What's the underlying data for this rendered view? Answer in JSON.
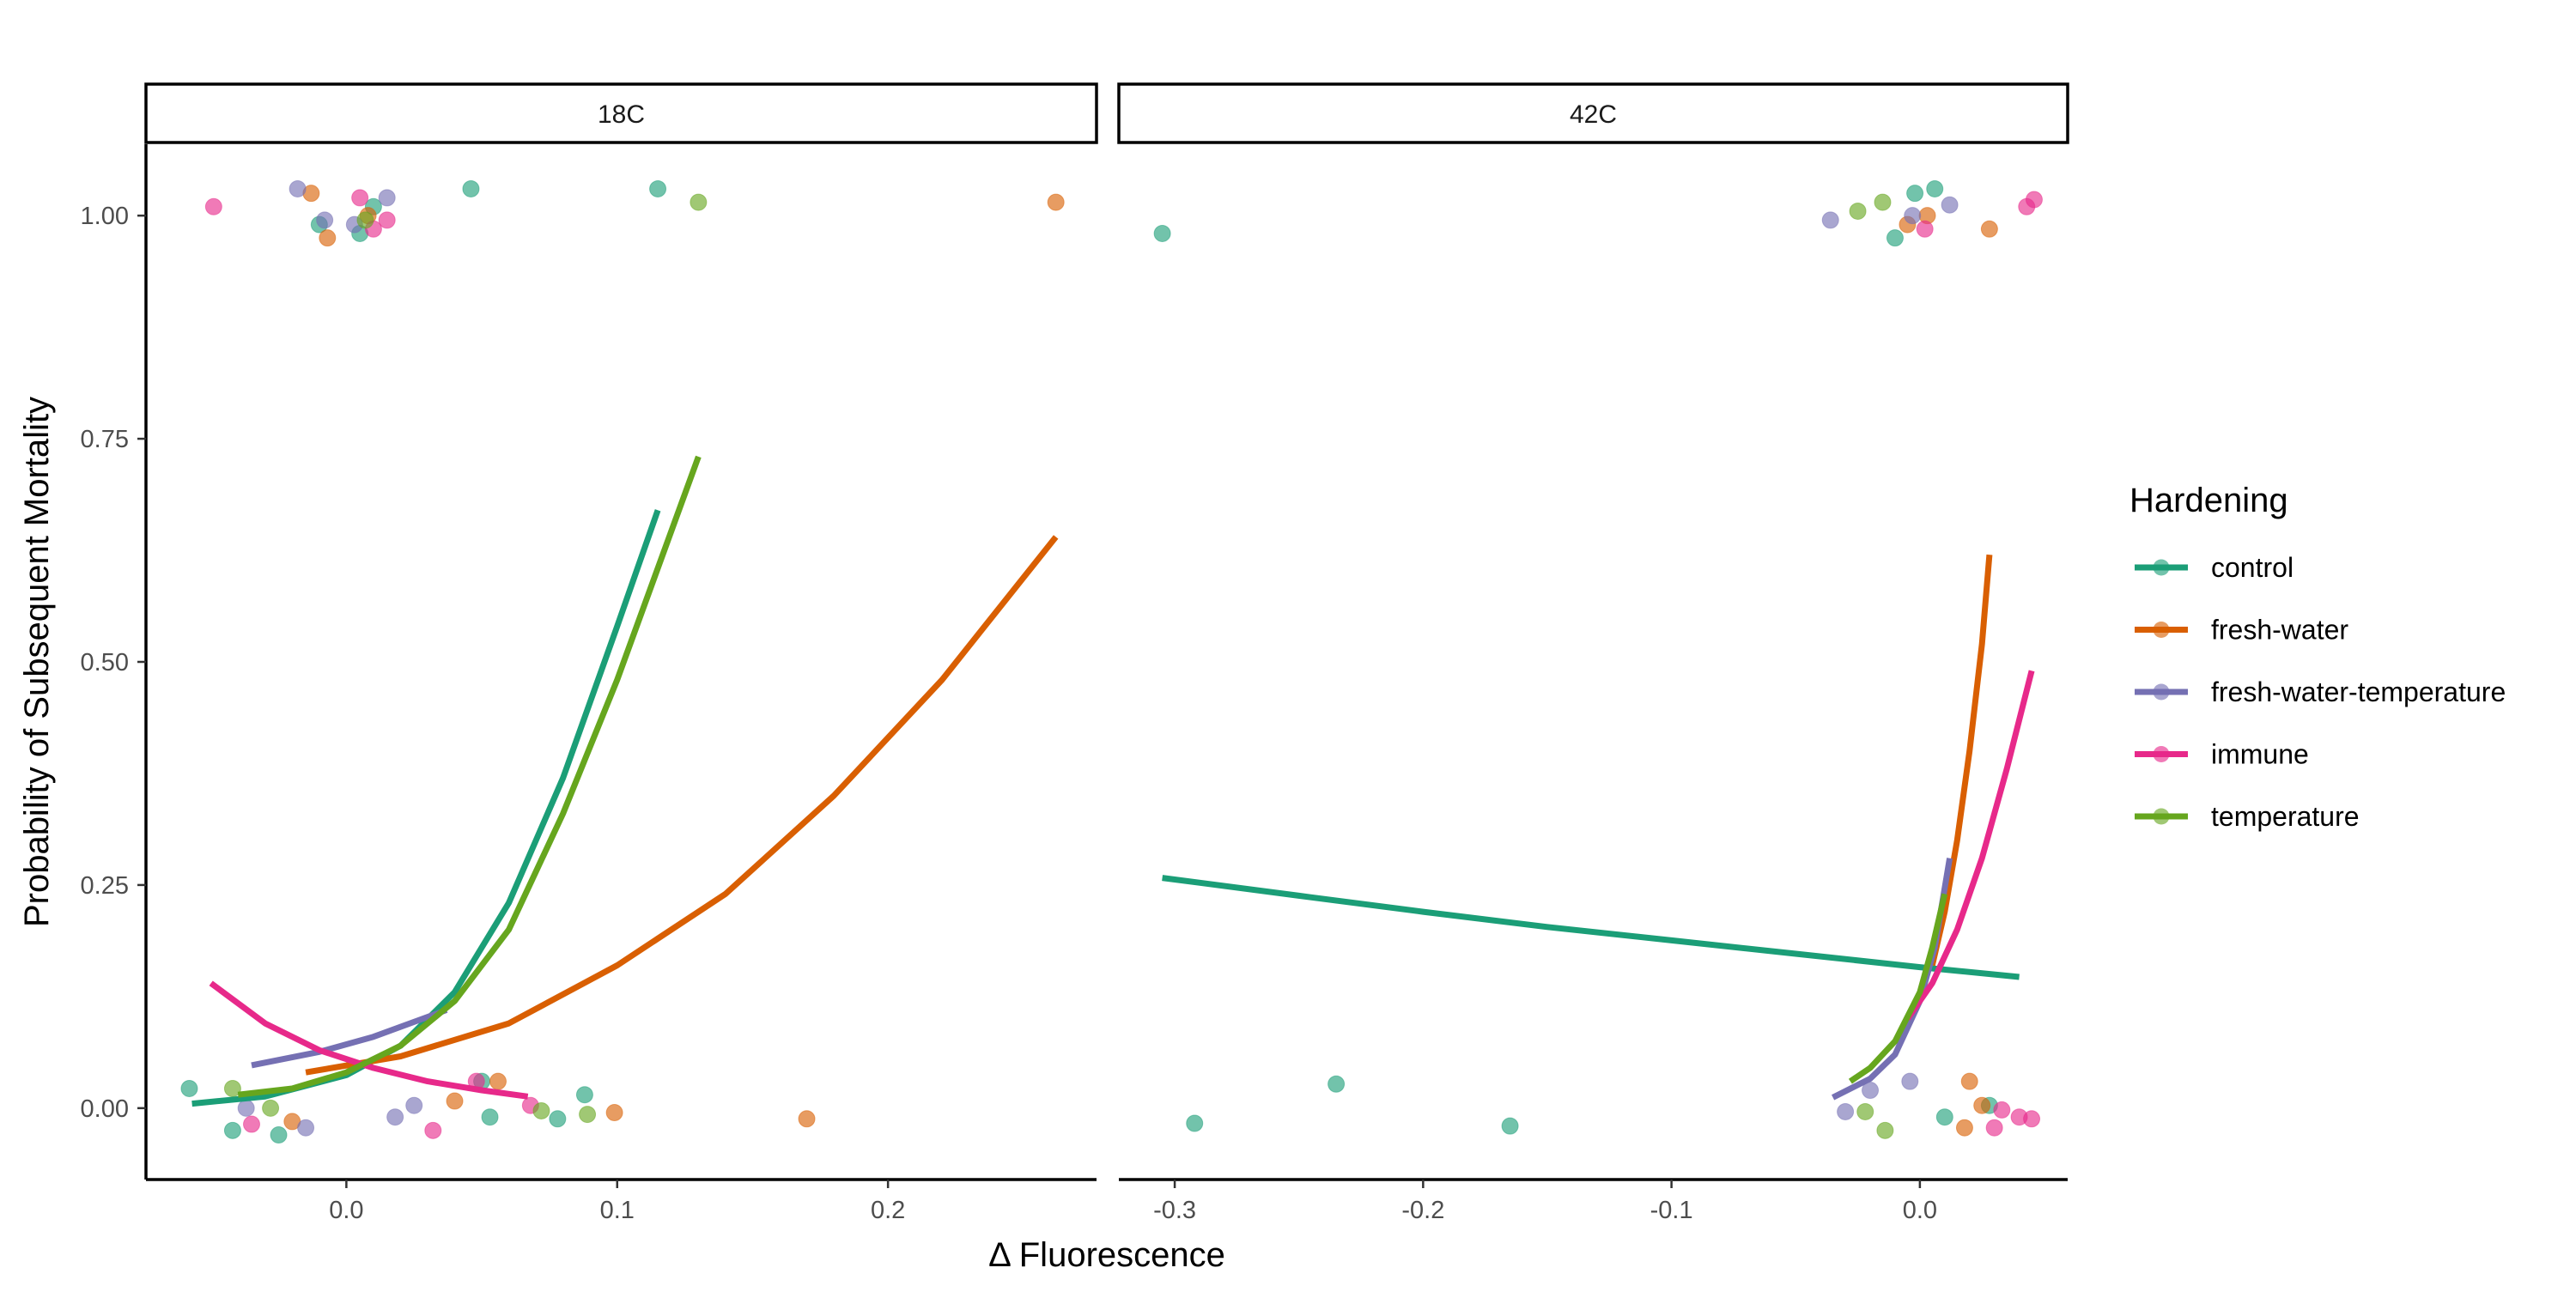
{
  "chart_data": {
    "type": "scatter",
    "xlabel": "Δ Fluorescence",
    "ylabel": "Probability of Subsequent Mortality",
    "legend": {
      "title": "Hardening",
      "placement": "right",
      "entries": [
        {
          "name": "control",
          "color": "#1B9E77"
        },
        {
          "name": "fresh-water",
          "color": "#D95F02"
        },
        {
          "name": "fresh-water-temperature",
          "color": "#7570B3"
        },
        {
          "name": "immune",
          "color": "#E7298A"
        },
        {
          "name": "temperature",
          "color": "#66A61E"
        }
      ]
    },
    "y_axis": {
      "range": [
        -0.08,
        1.08
      ],
      "ticks": [
        0,
        0.25,
        0.5,
        0.75,
        1
      ],
      "tick_labels": [
        "0.00",
        "0.25",
        "0.50",
        "0.75",
        "1.00"
      ]
    },
    "grid": false,
    "panels": [
      {
        "title": "18C",
        "x_range": [
          -0.074,
          0.277
        ],
        "x_ticks": [
          0,
          0.1,
          0.2
        ],
        "x_tick_labels": [
          "0.0",
          "0.1",
          "0.2"
        ],
        "curves": [
          {
            "name": "control",
            "x": [
              -0.057,
              -0.03,
              0,
              0.02,
              0.04,
              0.06,
              0.08,
              0.1,
              0.115
            ],
            "y": [
              0.005,
              0.013,
              0.037,
              0.07,
              0.13,
              0.23,
              0.37,
              0.54,
              0.67
            ]
          },
          {
            "name": "fresh-water",
            "x": [
              -0.015,
              0.02,
              0.06,
              0.1,
              0.14,
              0.18,
              0.22,
              0.262
            ],
            "y": [
              0.04,
              0.058,
              0.095,
              0.16,
              0.24,
              0.35,
              0.48,
              0.64
            ]
          },
          {
            "name": "fresh-water-temperature",
            "x": [
              -0.035,
              -0.01,
              0.01,
              0.037
            ],
            "y": [
              0.048,
              0.063,
              0.08,
              0.11
            ]
          },
          {
            "name": "immune",
            "x": [
              -0.05,
              -0.03,
              -0.01,
              0.01,
              0.03,
              0.05,
              0.067
            ],
            "y": [
              0.14,
              0.095,
              0.065,
              0.045,
              0.03,
              0.02,
              0.013
            ]
          },
          {
            "name": "temperature",
            "x": [
              -0.04,
              -0.02,
              0,
              0.02,
              0.04,
              0.06,
              0.08,
              0.1,
              0.13
            ],
            "y": [
              0.015,
              0.022,
              0.04,
              0.07,
              0.12,
              0.2,
              0.33,
              0.48,
              0.73
            ]
          }
        ],
        "points": [
          {
            "series": "control",
            "x": 0.046,
            "y": 1.03
          },
          {
            "series": "control",
            "x": 0.115,
            "y": 1.03
          },
          {
            "series": "control",
            "x": -0.01,
            "y": 0.99
          },
          {
            "series": "control",
            "x": 0.01,
            "y": 1.01
          },
          {
            "series": "control",
            "x": 0.005,
            "y": 0.98
          },
          {
            "series": "fresh-water",
            "x": 0.262,
            "y": 1.015
          },
          {
            "series": "fresh-water",
            "x": -0.013,
            "y": 1.025
          },
          {
            "series": "fresh-water",
            "x": -0.007,
            "y": 0.975
          },
          {
            "series": "fresh-water",
            "x": 0.008,
            "y": 1.0
          },
          {
            "series": "fresh-water-temperature",
            "x": -0.018,
            "y": 1.03
          },
          {
            "series": "fresh-water-temperature",
            "x": -0.008,
            "y": 0.995
          },
          {
            "series": "fresh-water-temperature",
            "x": 0.003,
            "y": 0.99
          },
          {
            "series": "fresh-water-temperature",
            "x": 0.015,
            "y": 1.02
          },
          {
            "series": "immune",
            "x": -0.049,
            "y": 1.01
          },
          {
            "series": "immune",
            "x": 0.015,
            "y": 0.995
          },
          {
            "series": "immune",
            "x": 0.01,
            "y": 0.985
          },
          {
            "series": "immune",
            "x": 0.005,
            "y": 1.02
          },
          {
            "series": "temperature",
            "x": 0.13,
            "y": 1.015
          },
          {
            "series": "temperature",
            "x": 0.007,
            "y": 0.995
          },
          {
            "series": "control",
            "x": -0.058,
            "y": 0.022
          },
          {
            "series": "control",
            "x": -0.042,
            "y": -0.025
          },
          {
            "series": "control",
            "x": -0.025,
            "y": -0.03
          },
          {
            "series": "control",
            "x": 0.05,
            "y": 0.03
          },
          {
            "series": "control",
            "x": 0.053,
            "y": -0.01
          },
          {
            "series": "control",
            "x": 0.078,
            "y": -0.012
          },
          {
            "series": "control",
            "x": 0.088,
            "y": 0.015
          },
          {
            "series": "fresh-water",
            "x": -0.02,
            "y": -0.015
          },
          {
            "series": "fresh-water",
            "x": 0.04,
            "y": 0.008
          },
          {
            "series": "fresh-water",
            "x": 0.056,
            "y": 0.03
          },
          {
            "series": "fresh-water",
            "x": 0.099,
            "y": -0.005
          },
          {
            "series": "fresh-water",
            "x": 0.17,
            "y": -0.012
          },
          {
            "series": "fresh-water-temperature",
            "x": -0.037,
            "y": 0.0
          },
          {
            "series": "fresh-water-temperature",
            "x": -0.015,
            "y": -0.022
          },
          {
            "series": "fresh-water-temperature",
            "x": 0.018,
            "y": -0.01
          },
          {
            "series": "fresh-water-temperature",
            "x": 0.025,
            "y": 0.003
          },
          {
            "series": "immune",
            "x": -0.035,
            "y": -0.018
          },
          {
            "series": "immune",
            "x": 0.032,
            "y": -0.025
          },
          {
            "series": "immune",
            "x": 0.048,
            "y": 0.03
          },
          {
            "series": "immune",
            "x": 0.068,
            "y": 0.003
          },
          {
            "series": "temperature",
            "x": -0.042,
            "y": 0.022
          },
          {
            "series": "temperature",
            "x": -0.028,
            "y": 0.0
          },
          {
            "series": "temperature",
            "x": 0.072,
            "y": -0.003
          },
          {
            "series": "temperature",
            "x": 0.089,
            "y": -0.007
          }
        ]
      },
      {
        "title": "42C",
        "x_range": [
          -0.3225,
          0.0595
        ],
        "x_ticks": [
          -0.3,
          -0.2,
          -0.1,
          0
        ],
        "x_tick_labels": [
          "-0.3",
          "-0.2",
          "-0.1",
          "0.0"
        ],
        "curves": [
          {
            "name": "control",
            "x": [
              -0.305,
              -0.25,
              -0.2,
              -0.15,
              -0.1,
              -0.05,
              0,
              0.04
            ],
            "y": [
              0.258,
              0.238,
              0.22,
              0.203,
              0.188,
              0.173,
              0.158,
              0.147
            ]
          },
          {
            "name": "fresh-water",
            "x": [
              0.005,
              0.01,
              0.015,
              0.02,
              0.025,
              0.028
            ],
            "y": [
              0.16,
              0.22,
              0.3,
              0.4,
              0.52,
              0.62
            ]
          },
          {
            "name": "fresh-water-temperature",
            "x": [
              -0.035,
              -0.02,
              -0.01,
              0,
              0.006,
              0.012
            ],
            "y": [
              0.012,
              0.033,
              0.06,
              0.12,
              0.18,
              0.28
            ]
          },
          {
            "name": "immune",
            "x": [
              -0.005,
              0.005,
              0.015,
              0.025,
              0.035,
              0.045
            ],
            "y": [
              0.1,
              0.14,
              0.2,
              0.28,
              0.38,
              0.49
            ]
          },
          {
            "name": "temperature",
            "x": [
              -0.028,
              -0.02,
              -0.01,
              0,
              0.005,
              0.01
            ],
            "y": [
              0.03,
              0.045,
              0.075,
              0.13,
              0.18,
              0.24
            ]
          }
        ],
        "points": [
          {
            "series": "control",
            "x": -0.305,
            "y": 0.98
          },
          {
            "series": "control",
            "x": -0.01,
            "y": 0.975
          },
          {
            "series": "control",
            "x": -0.002,
            "y": 1.025
          },
          {
            "series": "control",
            "x": 0.006,
            "y": 1.03
          },
          {
            "series": "fresh-water",
            "x": 0.028,
            "y": 0.985
          },
          {
            "series": "fresh-water",
            "x": -0.005,
            "y": 0.99
          },
          {
            "series": "fresh-water",
            "x": 0.003,
            "y": 1.0
          },
          {
            "series": "fresh-water-temperature",
            "x": -0.036,
            "y": 0.995
          },
          {
            "series": "fresh-water-temperature",
            "x": 0.012,
            "y": 1.012
          },
          {
            "series": "fresh-water-temperature",
            "x": -0.003,
            "y": 1.0
          },
          {
            "series": "immune",
            "x": 0.043,
            "y": 1.01
          },
          {
            "series": "immune",
            "x": 0.046,
            "y": 1.018
          },
          {
            "series": "immune",
            "x": 0.002,
            "y": 0.985
          },
          {
            "series": "temperature",
            "x": -0.025,
            "y": 1.005
          },
          {
            "series": "temperature",
            "x": -0.015,
            "y": 1.015
          },
          {
            "series": "control",
            "x": -0.292,
            "y": -0.017
          },
          {
            "series": "control",
            "x": -0.235,
            "y": 0.027
          },
          {
            "series": "control",
            "x": -0.165,
            "y": -0.02
          },
          {
            "series": "control",
            "x": 0.01,
            "y": -0.01
          },
          {
            "series": "control",
            "x": 0.028,
            "y": 0.003
          },
          {
            "series": "fresh-water",
            "x": 0.02,
            "y": 0.03
          },
          {
            "series": "fresh-water",
            "x": 0.025,
            "y": 0.003
          },
          {
            "series": "fresh-water",
            "x": 0.018,
            "y": -0.022
          },
          {
            "series": "fresh-water-temperature",
            "x": -0.03,
            "y": -0.004
          },
          {
            "series": "fresh-water-temperature",
            "x": -0.02,
            "y": 0.02
          },
          {
            "series": "fresh-water-temperature",
            "x": -0.004,
            "y": 0.03
          },
          {
            "series": "immune",
            "x": 0.03,
            "y": -0.022
          },
          {
            "series": "immune",
            "x": 0.04,
            "y": -0.01
          },
          {
            "series": "immune",
            "x": 0.045,
            "y": -0.012
          },
          {
            "series": "immune",
            "x": 0.033,
            "y": -0.002
          },
          {
            "series": "temperature",
            "x": -0.022,
            "y": -0.004
          },
          {
            "series": "temperature",
            "x": -0.014,
            "y": -0.025
          }
        ]
      }
    ]
  }
}
